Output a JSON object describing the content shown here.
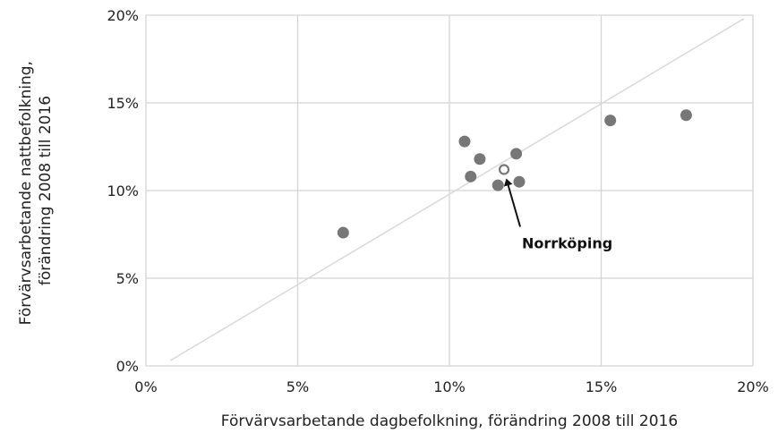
{
  "chart_data": {
    "type": "scatter",
    "xlabel": "Förvärvsarbetande dagbefolkning, förändring 2008 till 2016",
    "ylabel": [
      "Förvärvsarbetande nattbefolkning,",
      "förändring 2008 till 2016"
    ],
    "xlim": [
      0,
      20
    ],
    "ylim": [
      0,
      20
    ],
    "x_ticks": [
      "0%",
      "5%",
      "10%",
      "15%",
      "20%"
    ],
    "y_ticks": [
      "0%",
      "5%",
      "10%",
      "15%",
      "20%"
    ],
    "grid": "major vertical and horizontal",
    "points": [
      {
        "x": 6.5,
        "y": 7.6
      },
      {
        "x": 10.5,
        "y": 12.8
      },
      {
        "x": 10.7,
        "y": 10.8
      },
      {
        "x": 11.0,
        "y": 11.8
      },
      {
        "x": 11.6,
        "y": 10.3
      },
      {
        "x": 12.2,
        "y": 12.1
      },
      {
        "x": 12.3,
        "y": 10.5
      },
      {
        "x": 15.3,
        "y": 14.0
      },
      {
        "x": 17.8,
        "y": 14.3
      }
    ],
    "highlight": {
      "x": 11.8,
      "y": 11.2,
      "label": "Norrköping"
    },
    "reference_line": {
      "from": [
        0.8,
        0.3
      ],
      "to": [
        19.7,
        19.8
      ]
    },
    "colors": {
      "points": "#777777",
      "grid": "#d4d4d4",
      "reference_line": "#d9d9d9",
      "text": "#222222"
    }
  }
}
